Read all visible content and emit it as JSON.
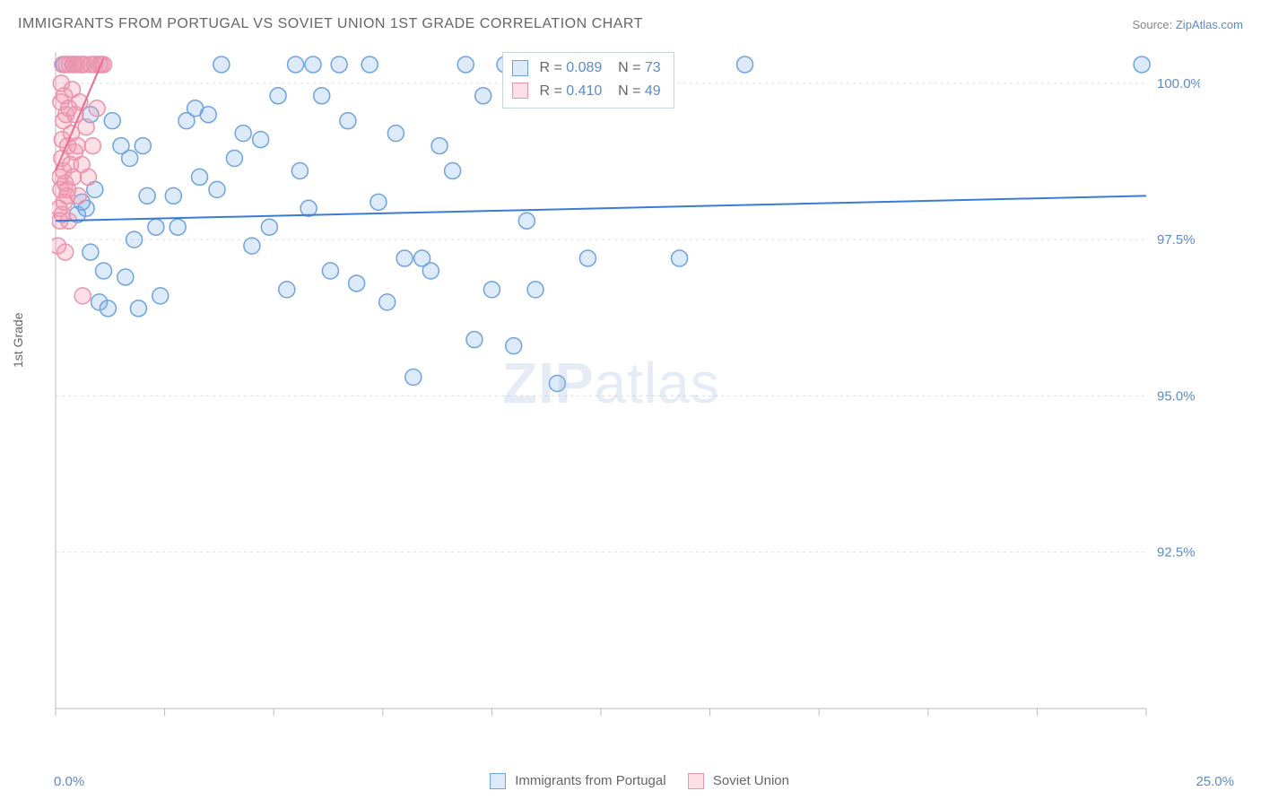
{
  "title": "IMMIGRANTS FROM PORTUGAL VS SOVIET UNION 1ST GRADE CORRELATION CHART",
  "source_label": "Source: ",
  "source_link": "ZipAtlas.com",
  "ylabel": "1st Grade",
  "watermark_a": "ZIP",
  "watermark_b": "atlas",
  "chart": {
    "type": "scatter",
    "xlim": [
      0,
      25
    ],
    "ylim": [
      90,
      100.5
    ],
    "x_ticks": [
      0,
      2.5,
      5,
      7.5,
      10,
      12.5,
      15,
      17.5,
      20,
      22.5,
      25
    ],
    "x_tick_labels": {
      "0": "0.0%",
      "25": "25.0%"
    },
    "y_gridlines": [
      92.5,
      95.0,
      97.5,
      100.0
    ],
    "y_tick_labels": [
      "92.5%",
      "95.0%",
      "97.5%",
      "100.0%"
    ],
    "background_color": "#ffffff",
    "grid_color": "#dcdcdc",
    "axis_color": "#bbbbbb",
    "tick_label_color": "#5b8bc9",
    "marker_radius": 9,
    "marker_stroke_width": 1.5,
    "series": [
      {
        "name": "Immigrants from Portugal",
        "fill": "rgba(120,170,230,0.25)",
        "stroke": "#6fa3df",
        "line_color": "#3a7bd5",
        "line_width": 2,
        "R": "0.089",
        "N": "73",
        "trend": {
          "x1": 0,
          "y1": 97.8,
          "x2": 25,
          "y2": 98.2
        },
        "points": [
          [
            0.2,
            100.3
          ],
          [
            0.4,
            100.3
          ],
          [
            0.5,
            97.9
          ],
          [
            0.6,
            98.1
          ],
          [
            0.6,
            100.3
          ],
          [
            0.7,
            98.0
          ],
          [
            0.8,
            99.5
          ],
          [
            0.8,
            97.3
          ],
          [
            0.9,
            98.3
          ],
          [
            1.0,
            96.5
          ],
          [
            1.0,
            100.3
          ],
          [
            1.1,
            97.0
          ],
          [
            1.2,
            96.4
          ],
          [
            1.3,
            99.4
          ],
          [
            1.5,
            99.0
          ],
          [
            1.6,
            96.9
          ],
          [
            1.7,
            98.8
          ],
          [
            1.8,
            97.5
          ],
          [
            1.9,
            96.4
          ],
          [
            2.0,
            99.0
          ],
          [
            2.1,
            98.2
          ],
          [
            2.3,
            97.7
          ],
          [
            2.4,
            96.6
          ],
          [
            2.7,
            98.2
          ],
          [
            2.8,
            97.7
          ],
          [
            3.0,
            99.4
          ],
          [
            3.2,
            99.6
          ],
          [
            3.3,
            98.5
          ],
          [
            3.5,
            99.5
          ],
          [
            3.7,
            98.3
          ],
          [
            3.8,
            100.3
          ],
          [
            4.1,
            98.8
          ],
          [
            4.3,
            99.2
          ],
          [
            4.5,
            97.4
          ],
          [
            4.7,
            99.1
          ],
          [
            4.9,
            97.7
          ],
          [
            5.1,
            99.8
          ],
          [
            5.3,
            96.7
          ],
          [
            5.5,
            100.3
          ],
          [
            5.6,
            98.6
          ],
          [
            5.8,
            98.0
          ],
          [
            5.9,
            100.3
          ],
          [
            6.1,
            99.8
          ],
          [
            6.3,
            97.0
          ],
          [
            6.5,
            100.3
          ],
          [
            6.7,
            99.4
          ],
          [
            6.9,
            96.8
          ],
          [
            7.2,
            100.3
          ],
          [
            7.4,
            98.1
          ],
          [
            7.6,
            96.5
          ],
          [
            7.8,
            99.2
          ],
          [
            8.0,
            97.2
          ],
          [
            8.2,
            95.3
          ],
          [
            8.4,
            97.2
          ],
          [
            8.6,
            97.0
          ],
          [
            8.8,
            99.0
          ],
          [
            9.1,
            98.6
          ],
          [
            9.4,
            100.3
          ],
          [
            9.6,
            95.9
          ],
          [
            9.8,
            99.8
          ],
          [
            10.0,
            96.7
          ],
          [
            10.3,
            100.3
          ],
          [
            10.5,
            95.8
          ],
          [
            10.8,
            97.8
          ],
          [
            11.0,
            96.7
          ],
          [
            11.5,
            95.2
          ],
          [
            12.2,
            97.2
          ],
          [
            12.8,
            100.3
          ],
          [
            13.1,
            99.9
          ],
          [
            13.4,
            100.3
          ],
          [
            14.3,
            97.2
          ],
          [
            15.8,
            100.3
          ],
          [
            24.9,
            100.3
          ]
        ]
      },
      {
        "name": "Soviet Union",
        "fill": "rgba(245,150,175,0.30)",
        "stroke": "#ea94ac",
        "line_color": "#e86c91",
        "line_width": 2,
        "R": "0.410",
        "N": "49",
        "trend": {
          "x1": 0,
          "y1": 98.6,
          "x2": 1.1,
          "y2": 100.4
        },
        "points": [
          [
            0.05,
            97.4
          ],
          [
            0.08,
            98.0
          ],
          [
            0.1,
            98.5
          ],
          [
            0.1,
            97.8
          ],
          [
            0.12,
            99.7
          ],
          [
            0.12,
            98.3
          ],
          [
            0.13,
            100.0
          ],
          [
            0.14,
            98.8
          ],
          [
            0.15,
            99.1
          ],
          [
            0.15,
            97.9
          ],
          [
            0.16,
            100.3
          ],
          [
            0.18,
            98.6
          ],
          [
            0.18,
            99.4
          ],
          [
            0.2,
            98.1
          ],
          [
            0.2,
            99.8
          ],
          [
            0.22,
            97.3
          ],
          [
            0.22,
            98.4
          ],
          [
            0.24,
            99.5
          ],
          [
            0.25,
            100.3
          ],
          [
            0.26,
            98.2
          ],
          [
            0.28,
            99.0
          ],
          [
            0.28,
            98.3
          ],
          [
            0.3,
            99.6
          ],
          [
            0.3,
            97.8
          ],
          [
            0.32,
            100.3
          ],
          [
            0.34,
            98.7
          ],
          [
            0.36,
            99.2
          ],
          [
            0.38,
            99.9
          ],
          [
            0.4,
            98.5
          ],
          [
            0.42,
            100.3
          ],
          [
            0.44,
            98.9
          ],
          [
            0.45,
            99.5
          ],
          [
            0.48,
            100.3
          ],
          [
            0.5,
            99.0
          ],
          [
            0.52,
            98.2
          ],
          [
            0.55,
            99.7
          ],
          [
            0.58,
            100.3
          ],
          [
            0.6,
            98.7
          ],
          [
            0.62,
            96.6
          ],
          [
            0.65,
            100.3
          ],
          [
            0.7,
            99.3
          ],
          [
            0.75,
            98.5
          ],
          [
            0.8,
            100.3
          ],
          [
            0.85,
            99.0
          ],
          [
            0.9,
            100.3
          ],
          [
            0.95,
            99.6
          ],
          [
            1.0,
            100.3
          ],
          [
            1.05,
            100.3
          ],
          [
            1.1,
            100.3
          ]
        ]
      }
    ]
  },
  "legend": {
    "series1_label": "Immigrants from Portugal",
    "series2_label": "Soviet Union"
  },
  "stat_labels": {
    "R": "R = ",
    "N": "N = "
  }
}
